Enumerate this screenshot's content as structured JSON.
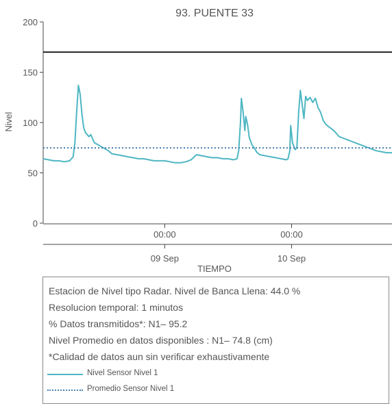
{
  "chart_data": {
    "type": "line",
    "title": "93. PUENTE 33",
    "xlabel": "TIEMPO",
    "ylabel": "Nivel",
    "ylim": [
      0,
      200
    ],
    "yticks": [
      0,
      50,
      100,
      150,
      200
    ],
    "xlim": [
      "2021-09-08T01:00",
      "2021-09-10T19:00"
    ],
    "xticks": [
      {
        "t": "2021-09-09T00:00",
        "time_label": "00:00",
        "date_label": "09 Sep"
      },
      {
        "t": "2021-09-10T00:00",
        "time_label": "00:00",
        "date_label": "10 Sep"
      }
    ],
    "reference_lines": [
      {
        "value": 170,
        "color": "#222222",
        "style": "solid"
      }
    ],
    "grid": false,
    "series": [
      {
        "name": "Nivel Sensor Nivel 1",
        "color": "#4db6c3",
        "style": "solid",
        "points": [
          [
            "2021-09-08T01:00",
            64
          ],
          [
            "2021-09-08T02:00",
            63
          ],
          [
            "2021-09-08T03:00",
            62
          ],
          [
            "2021-09-08T04:00",
            62
          ],
          [
            "2021-09-08T05:00",
            61
          ],
          [
            "2021-09-08T06:00",
            62
          ],
          [
            "2021-09-08T06:40",
            66
          ],
          [
            "2021-09-08T07:00",
            80
          ],
          [
            "2021-09-08T07:20",
            110
          ],
          [
            "2021-09-08T07:40",
            137
          ],
          [
            "2021-09-08T08:00",
            128
          ],
          [
            "2021-09-08T08:20",
            108
          ],
          [
            "2021-09-08T08:40",
            95
          ],
          [
            "2021-09-08T09:00",
            90
          ],
          [
            "2021-09-08T09:40",
            86
          ],
          [
            "2021-09-08T10:00",
            88
          ],
          [
            "2021-09-08T10:20",
            84
          ],
          [
            "2021-09-08T10:40",
            80
          ],
          [
            "2021-09-08T11:20",
            78
          ],
          [
            "2021-09-08T12:00",
            76
          ],
          [
            "2021-09-08T12:40",
            74
          ],
          [
            "2021-09-08T13:20",
            72
          ],
          [
            "2021-09-08T14:00",
            69
          ],
          [
            "2021-09-08T15:00",
            68
          ],
          [
            "2021-09-08T16:00",
            67
          ],
          [
            "2021-09-08T17:00",
            66
          ],
          [
            "2021-09-08T18:00",
            65
          ],
          [
            "2021-09-08T19:00",
            64
          ],
          [
            "2021-09-08T20:00",
            64
          ],
          [
            "2021-09-08T21:00",
            63
          ],
          [
            "2021-09-08T22:00",
            62
          ],
          [
            "2021-09-08T23:00",
            62
          ],
          [
            "2021-09-09T00:00",
            62
          ],
          [
            "2021-09-09T01:00",
            61
          ],
          [
            "2021-09-09T02:00",
            60
          ],
          [
            "2021-09-09T03:00",
            60
          ],
          [
            "2021-09-09T04:00",
            61
          ],
          [
            "2021-09-09T05:00",
            63
          ],
          [
            "2021-09-09T06:00",
            68
          ],
          [
            "2021-09-09T07:00",
            67
          ],
          [
            "2021-09-09T08:00",
            66
          ],
          [
            "2021-09-09T09:00",
            65
          ],
          [
            "2021-09-09T10:00",
            65
          ],
          [
            "2021-09-09T11:00",
            64
          ],
          [
            "2021-09-09T12:00",
            64
          ],
          [
            "2021-09-09T13:00",
            63
          ],
          [
            "2021-09-09T13:40",
            64
          ],
          [
            "2021-09-09T14:00",
            72
          ],
          [
            "2021-09-09T14:20",
            100
          ],
          [
            "2021-09-09T14:30",
            124
          ],
          [
            "2021-09-09T14:50",
            110
          ],
          [
            "2021-09-09T15:10",
            92
          ],
          [
            "2021-09-09T15:20",
            106
          ],
          [
            "2021-09-09T15:40",
            98
          ],
          [
            "2021-09-09T16:00",
            85
          ],
          [
            "2021-09-09T16:30",
            78
          ],
          [
            "2021-09-09T17:00",
            74
          ],
          [
            "2021-09-09T17:30",
            70
          ],
          [
            "2021-09-09T18:00",
            68
          ],
          [
            "2021-09-09T19:00",
            67
          ],
          [
            "2021-09-09T20:00",
            66
          ],
          [
            "2021-09-09T21:00",
            65
          ],
          [
            "2021-09-09T22:00",
            64
          ],
          [
            "2021-09-09T23:00",
            63
          ],
          [
            "2021-09-09T23:20",
            64
          ],
          [
            "2021-09-09T23:40",
            72
          ],
          [
            "2021-09-09T23:50",
            97
          ],
          [
            "2021-09-10T00:10",
            80
          ],
          [
            "2021-09-10T00:40",
            73
          ],
          [
            "2021-09-10T01:00",
            75
          ],
          [
            "2021-09-10T01:20",
            110
          ],
          [
            "2021-09-10T01:40",
            132
          ],
          [
            "2021-09-10T02:00",
            118
          ],
          [
            "2021-09-10T02:20",
            104
          ],
          [
            "2021-09-10T02:40",
            126
          ],
          [
            "2021-09-10T03:00",
            122
          ],
          [
            "2021-09-10T03:30",
            125
          ],
          [
            "2021-09-10T04:00",
            120
          ],
          [
            "2021-09-10T04:30",
            124
          ],
          [
            "2021-09-10T05:00",
            115
          ],
          [
            "2021-09-10T05:30",
            110
          ],
          [
            "2021-09-10T06:00",
            102
          ],
          [
            "2021-09-10T06:30",
            98
          ],
          [
            "2021-09-10T07:00",
            96
          ],
          [
            "2021-09-10T08:00",
            92
          ],
          [
            "2021-09-10T09:00",
            86
          ],
          [
            "2021-09-10T10:00",
            84
          ],
          [
            "2021-09-10T11:00",
            82
          ],
          [
            "2021-09-10T12:00",
            80
          ],
          [
            "2021-09-10T13:00",
            78
          ],
          [
            "2021-09-10T14:00",
            76
          ],
          [
            "2021-09-10T15:00",
            74
          ],
          [
            "2021-09-10T16:00",
            72
          ],
          [
            "2021-09-10T17:00",
            71
          ],
          [
            "2021-09-10T18:00",
            70
          ],
          [
            "2021-09-10T19:00",
            70
          ]
        ]
      },
      {
        "name": "Promedio Sensor Nivel 1",
        "color": "#4a7fb0",
        "style": "dotted",
        "constant": 74.8
      }
    ]
  },
  "info": {
    "line1": "Estacion de Nivel tipo Radar. Nivel de Banca Llena: 44.0 %",
    "line2": "Resolucion temporal: 1 minutos",
    "line3": "% Datos transmitidos*: N1– 95.2",
    "line4": "Nivel Promedio en datos disponibles : N1– 74.8 (cm)",
    "line5": "*Calidad de datos aun sin verificar exhaustivamente"
  },
  "legend": {
    "item1": "Nivel Sensor Nivel 1",
    "item2": "Promedio Sensor Nivel 1"
  }
}
